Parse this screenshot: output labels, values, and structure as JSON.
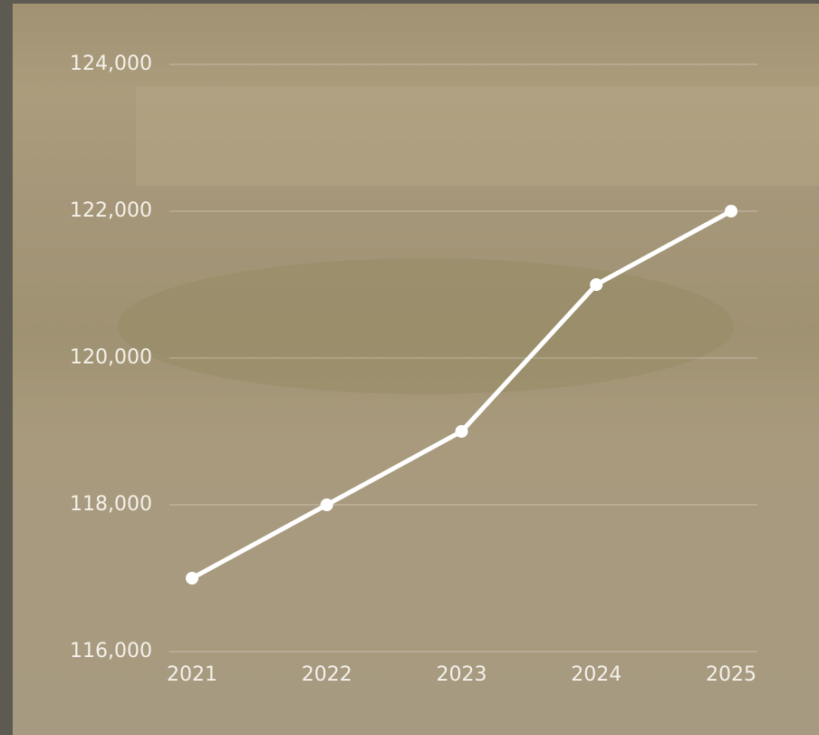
{
  "chart_data": {
    "type": "line",
    "categories": [
      "2021",
      "2022",
      "2023",
      "2024",
      "2025"
    ],
    "values": [
      117000,
      118000,
      119000,
      121000,
      122000
    ],
    "color": "#ffffff",
    "ylim": [
      116000,
      124000
    ],
    "yticks": [
      {
        "value": 116000,
        "label": "116,000"
      },
      {
        "value": 118000,
        "label": "118,000"
      },
      {
        "value": 120000,
        "label": "120,000"
      },
      {
        "value": 122000,
        "label": "122,000"
      },
      {
        "value": 124000,
        "label": "124,000"
      }
    ],
    "grid": true
  }
}
